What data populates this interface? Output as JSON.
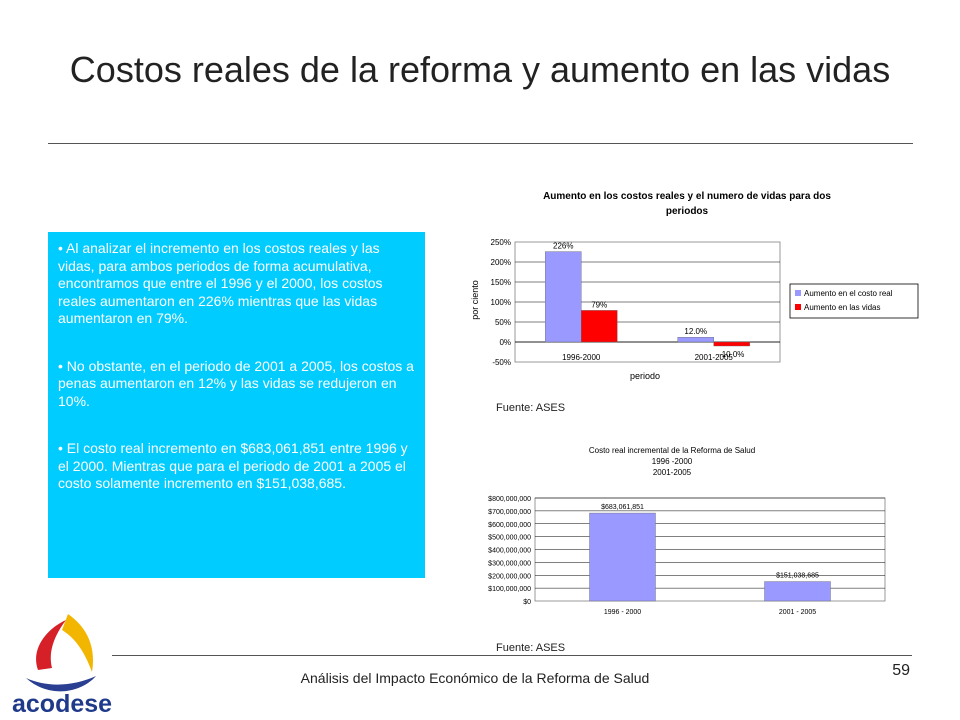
{
  "slide": {
    "title": "Costos reales de la reforma y aumento en las vidas",
    "bullets": [
      "• Al analizar el incremento en los costos reales y las vidas, para ambos periodos de forma acumulativa, encontramos que entre el 1996 y el 2000, los costos reales aumentaron en 226% mientras que las vidas aumentaron en 79%.",
      "• No obstante, en el periodo de 2001 a 2005, los costos a penas aumentaron en 12% y las vidas se redujeron en 10%.",
      "• El costo real incremento en $683,061,851 entre 1996 y el 2000. Mientras que para el periodo de 2001 a 2005 el costo solamente incremento en $151,038,685."
    ],
    "source1": "Fuente: ASES",
    "source2": "Fuente: ASES",
    "footer": "Análisis del Impacto Económico de la Reforma de Salud",
    "page_number": "59",
    "logo_text": "acodese"
  },
  "colors": {
    "text_box": "#00ccff",
    "series_cost": "#9999ff",
    "series_lives": "#ff0000"
  },
  "chart_data": [
    {
      "type": "bar",
      "title": "Aumento en los costos reales y el numero de vidas para dos periodos",
      "xlabel": "periodo",
      "ylabel": "por ciento",
      "categories": [
        "1996-2000",
        "2001-2005"
      ],
      "series": [
        {
          "name": "Aumento en el costo real",
          "values": [
            226,
            12
          ],
          "labels": [
            "226%",
            "12.0%"
          ]
        },
        {
          "name": "Aumento en las vidas",
          "values": [
            79,
            -10
          ],
          "labels": [
            "79%",
            "-10.0%"
          ]
        }
      ],
      "ylim": [
        -50,
        250
      ],
      "yticks": [
        "250%",
        "200%",
        "150%",
        "100%",
        "50%",
        "0%",
        "-50%"
      ],
      "ytick_values": [
        250,
        200,
        150,
        100,
        50,
        0,
        -50
      ],
      "legend": "right",
      "grid": true
    },
    {
      "type": "bar",
      "title": "Costo real incremental de la Reforma de Salud",
      "subtitle": [
        "1996 -2000",
        "2001-2005"
      ],
      "categories": [
        "1996 - 2000",
        "2001 - 2005"
      ],
      "values": [
        683061851,
        151038685
      ],
      "labels": [
        "$683,061,851",
        "$151,038,685"
      ],
      "ylim": [
        0,
        800000000
      ],
      "yticks": [
        "$800,000,000",
        "$700,000,000",
        "$600,000,000",
        "$500,000,000",
        "$400,000,000",
        "$300,000,000",
        "$200,000,000",
        "$100,000,000",
        "$0"
      ],
      "ytick_values": [
        800000000,
        700000000,
        600000000,
        500000000,
        400000000,
        300000000,
        200000000,
        100000000,
        0
      ],
      "grid": true
    }
  ]
}
